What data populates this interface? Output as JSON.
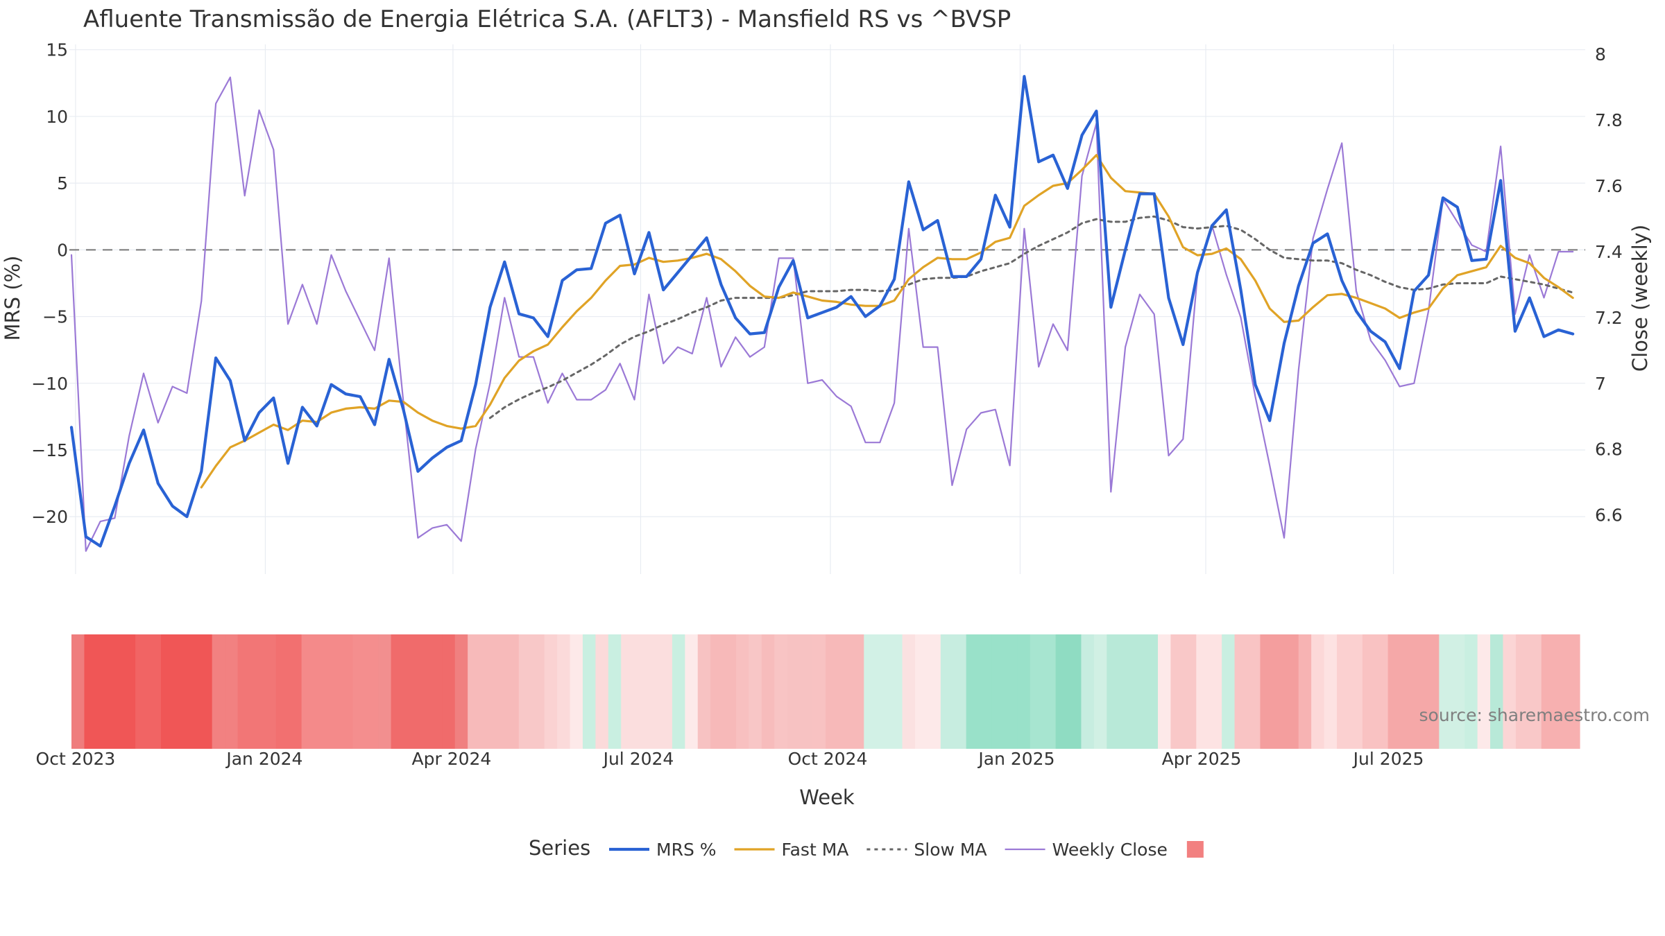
{
  "chart_data": {
    "type": "line",
    "title": "Afluente Transmissão de Energia Elétrica S.A. (AFLT3) - Mansfield RS vs ^BVSP",
    "xlabel": "Week",
    "ylabel": "MRS (%)",
    "y2label": "Close (weekly)",
    "ylim": [
      -24.3,
      15.4
    ],
    "y2lim": [
      6.42,
      8.03
    ],
    "xlim": [
      "2023-09-28",
      "2025-10-02"
    ],
    "y_ticks": [
      "15",
      "10",
      "5",
      "0",
      "−5",
      "−10",
      "−15",
      "−20"
    ],
    "y_tick_values": [
      15,
      10,
      5,
      0,
      -5,
      -10,
      -15,
      -20
    ],
    "y2_ticks": [
      "8",
      "7.8",
      "7.6",
      "7.4",
      "7.2",
      "7",
      "6.8",
      "6.6"
    ],
    "y2_tick_values": [
      8,
      7.8,
      7.6,
      7.4,
      7.2,
      7,
      6.8,
      6.6
    ],
    "x_ticks": [
      {
        "date": "2023-10-01",
        "label": "Oct 2023"
      },
      {
        "date": "2024-01-01",
        "label": "Jan 2024"
      },
      {
        "date": "2024-04-01",
        "label": "Apr 2024"
      },
      {
        "date": "2024-07-01",
        "label": "Jul 2024"
      },
      {
        "date": "2024-10-01",
        "label": "Oct 2024"
      },
      {
        "date": "2025-01-01",
        "label": "Jan 2025"
      },
      {
        "date": "2025-04-01",
        "label": "Apr 2025"
      },
      {
        "date": "2025-07-01",
        "label": "Jul 2025"
      }
    ],
    "x": [
      "2023-09-29",
      "2023-10-06",
      "2023-10-13",
      "2023-10-20",
      "2023-10-27",
      "2023-11-03",
      "2023-11-10",
      "2023-11-17",
      "2023-11-24",
      "2023-12-01",
      "2023-12-08",
      "2023-12-15",
      "2023-12-22",
      "2023-12-29",
      "2024-01-05",
      "2024-01-12",
      "2024-01-19",
      "2024-01-26",
      "2024-02-02",
      "2024-02-09",
      "2024-02-16",
      "2024-02-23",
      "2024-03-01",
      "2024-03-08",
      "2024-03-15",
      "2024-03-22",
      "2024-03-29",
      "2024-04-05",
      "2024-04-12",
      "2024-04-19",
      "2024-04-26",
      "2024-05-03",
      "2024-05-10",
      "2024-05-17",
      "2024-05-24",
      "2024-05-31",
      "2024-06-07",
      "2024-06-14",
      "2024-06-21",
      "2024-06-28",
      "2024-07-05",
      "2024-07-12",
      "2024-07-19",
      "2024-07-26",
      "2024-08-02",
      "2024-08-09",
      "2024-08-16",
      "2024-08-23",
      "2024-08-30",
      "2024-09-06",
      "2024-09-13",
      "2024-09-20",
      "2024-09-27",
      "2024-10-04",
      "2024-10-11",
      "2024-10-18",
      "2024-10-25",
      "2024-11-01",
      "2024-11-08",
      "2024-11-15",
      "2024-11-22",
      "2024-11-29",
      "2024-12-06",
      "2024-12-13",
      "2024-12-20",
      "2024-12-27",
      "2025-01-03",
      "2025-01-10",
      "2025-01-17",
      "2025-01-24",
      "2025-01-31",
      "2025-02-07",
      "2025-02-14",
      "2025-02-21",
      "2025-02-28",
      "2025-03-07",
      "2025-03-14",
      "2025-03-21",
      "2025-03-28",
      "2025-04-04",
      "2025-04-11",
      "2025-04-18",
      "2025-04-25",
      "2025-05-02",
      "2025-05-09",
      "2025-05-16",
      "2025-05-23",
      "2025-05-30",
      "2025-06-06",
      "2025-06-13",
      "2025-06-20",
      "2025-06-27",
      "2025-07-04",
      "2025-07-11",
      "2025-07-18",
      "2025-07-25",
      "2025-08-01",
      "2025-08-08",
      "2025-08-15",
      "2025-08-22",
      "2025-08-29",
      "2025-09-05",
      "2025-09-12",
      "2025-09-19",
      "2025-09-26"
    ],
    "series": [
      {
        "name": "MRS %",
        "axis": "left",
        "color": "#2962d4",
        "style": "solid-thick",
        "values": [
          -13.3,
          -21.5,
          -22.2,
          -19.2,
          -16.0,
          -13.5,
          -17.5,
          -19.2,
          -20.0,
          -16.6,
          -8.1,
          -9.8,
          -14.3,
          -12.2,
          -11.1,
          -16.0,
          -11.8,
          -13.2,
          -10.1,
          -10.8,
          -11.0,
          -13.1,
          -8.2,
          -12.0,
          -16.6,
          -15.6,
          -14.8,
          -14.3,
          -10.1,
          -4.3,
          -0.9,
          -4.8,
          -5.1,
          -6.5,
          -2.3,
          -1.5,
          -1.4,
          2.0,
          2.6,
          -1.8,
          1.3,
          -3.0,
          -1.7,
          -0.4,
          0.9,
          -2.6,
          -5.1,
          -6.3,
          -6.2,
          -2.8,
          -0.8,
          -5.1,
          -4.7,
          -4.3,
          -3.5,
          -5.0,
          -4.2,
          -2.2,
          5.1,
          1.5,
          2.2,
          -2.0,
          -2.0,
          -0.7,
          4.1,
          1.7,
          13.0,
          6.6,
          7.1,
          4.6,
          8.6,
          10.4,
          -4.3,
          0.0,
          4.2,
          4.2,
          -3.6,
          -7.1,
          -1.7,
          1.8,
          3.0,
          -3.0,
          -10.1,
          -12.8,
          -7.0,
          -2.7,
          0.5,
          1.2,
          -2.3,
          -4.6,
          -6.1,
          -6.9,
          -8.9,
          -3.1,
          -1.9,
          3.9,
          3.2,
          -0.8,
          -0.7,
          5.2,
          -6.1,
          -3.6,
          -6.5,
          -6.0,
          -6.3
        ]
      },
      {
        "name": "Fast MA",
        "axis": "left",
        "color": "#e0a326",
        "style": "solid",
        "values": [
          null,
          null,
          null,
          null,
          null,
          null,
          null,
          null,
          null,
          -17.8,
          -16.2,
          -14.8,
          -14.3,
          -13.7,
          -13.1,
          -13.5,
          -12.8,
          -12.9,
          -12.2,
          -11.9,
          -11.8,
          -11.9,
          -11.3,
          -11.4,
          -12.2,
          -12.8,
          -13.2,
          -13.4,
          -13.2,
          -11.6,
          -9.6,
          -8.3,
          -7.6,
          -7.1,
          -5.8,
          -4.6,
          -3.6,
          -2.3,
          -1.2,
          -1.1,
          -0.6,
          -0.9,
          -0.8,
          -0.6,
          -0.3,
          -0.7,
          -1.6,
          -2.7,
          -3.5,
          -3.6,
          -3.2,
          -3.5,
          -3.8,
          -3.9,
          -4.1,
          -4.2,
          -4.2,
          -3.8,
          -2.2,
          -1.3,
          -0.6,
          -0.7,
          -0.7,
          -0.2,
          0.6,
          0.9,
          3.3,
          4.1,
          4.8,
          5.0,
          6.0,
          7.1,
          5.4,
          4.4,
          4.3,
          4.2,
          2.5,
          0.2,
          -0.4,
          -0.3,
          0.1,
          -0.7,
          -2.3,
          -4.4,
          -5.4,
          -5.3,
          -4.3,
          -3.4,
          -3.3,
          -3.6,
          -4.0,
          -4.4,
          -5.1,
          -4.7,
          -4.4,
          -2.9,
          -1.9,
          -1.6,
          -1.3,
          0.3,
          -0.6,
          -1.0,
          -2.1,
          -2.8,
          -3.6
        ]
      },
      {
        "name": "Slow MA",
        "axis": "left",
        "color": "#666666",
        "style": "dotted",
        "values": [
          null,
          null,
          null,
          null,
          null,
          null,
          null,
          null,
          null,
          null,
          null,
          null,
          null,
          null,
          null,
          null,
          null,
          null,
          null,
          null,
          null,
          null,
          null,
          null,
          null,
          null,
          null,
          null,
          null,
          -12.6,
          -11.8,
          -11.2,
          -10.7,
          -10.3,
          -9.8,
          -9.2,
          -8.6,
          -7.9,
          -7.1,
          -6.5,
          -6.1,
          -5.6,
          -5.2,
          -4.7,
          -4.3,
          -3.8,
          -3.6,
          -3.6,
          -3.6,
          -3.6,
          -3.4,
          -3.1,
          -3.1,
          -3.1,
          -3.0,
          -3.0,
          -3.1,
          -3.0,
          -2.6,
          -2.2,
          -2.1,
          -2.1,
          -2.0,
          -1.6,
          -1.3,
          -1.0,
          -0.3,
          0.3,
          0.8,
          1.3,
          2.0,
          2.3,
          2.1,
          2.1,
          2.4,
          2.5,
          2.2,
          1.7,
          1.6,
          1.7,
          1.8,
          1.5,
          0.8,
          0.0,
          -0.6,
          -0.7,
          -0.8,
          -0.8,
          -1.0,
          -1.5,
          -1.9,
          -2.4,
          -2.8,
          -3.0,
          -2.9,
          -2.6,
          -2.5,
          -2.5,
          -2.5,
          -2.0,
          -2.2,
          -2.4,
          -2.6,
          -2.9,
          -3.2
        ]
      },
      {
        "name": "Weekly Close",
        "axis": "right",
        "color": "#9b79d6",
        "style": "solid-thin",
        "values": [
          7.39,
          6.49,
          6.58,
          6.59,
          6.84,
          7.03,
          6.88,
          6.99,
          6.97,
          7.25,
          7.85,
          7.93,
          7.57,
          7.83,
          7.71,
          7.18,
          7.3,
          7.18,
          7.39,
          7.28,
          7.19,
          7.1,
          7.38,
          6.94,
          6.53,
          6.56,
          6.57,
          6.52,
          6.8,
          7.0,
          7.26,
          7.08,
          7.08,
          6.94,
          7.03,
          6.95,
          6.95,
          6.98,
          7.06,
          6.95,
          7.27,
          7.06,
          7.11,
          7.09,
          7.26,
          7.05,
          7.14,
          7.08,
          7.11,
          7.38,
          7.38,
          7.0,
          7.01,
          6.96,
          6.93,
          6.82,
          6.82,
          6.94,
          7.47,
          7.11,
          7.11,
          6.69,
          6.86,
          6.91,
          6.92,
          6.75,
          7.47,
          7.05,
          7.18,
          7.1,
          7.63,
          7.79,
          6.67,
          7.11,
          7.27,
          7.21,
          6.78,
          6.83,
          7.33,
          7.48,
          7.33,
          7.2,
          6.96,
          6.75,
          6.53,
          7.04,
          7.44,
          7.59,
          7.73,
          7.28,
          7.13,
          7.07,
          6.99,
          7.0,
          7.22,
          7.56,
          7.49,
          7.42,
          7.4,
          7.72,
          7.21,
          7.39,
          7.26,
          7.4,
          7.4
        ]
      }
    ],
    "heatmap_strip": {
      "description_colors": "green=positive MRS, red=negative MRS",
      "colors": [
        "#ef7d7d",
        "#f05656",
        "#f05656",
        "#f05656",
        "#f05656",
        "#f16464",
        "#f16464",
        "#f05656",
        "#f05656",
        "#f05656",
        "#f05656",
        "#f28181",
        "#f28181",
        "#f27676",
        "#f27676",
        "#f27676",
        "#f27070",
        "#f27070",
        "#f48a8a",
        "#f48a8a",
        "#f48a8a",
        "#f48a8a",
        "#f48e8e",
        "#f48e8e",
        "#f28f8f",
        "#f06b6b",
        "#f06b6b",
        "#f06b6b",
        "#f06b6b",
        "#f06b6b",
        "#f08080",
        "#f7baba",
        "#f7baba",
        "#f7baba",
        "#f7baba",
        "#f8c8c8",
        "#f8c8c8",
        "#fad2d2",
        "#fbdada",
        "#fde9e9",
        "#c9efe1",
        "#fbdada",
        "#c9efe1",
        "#fbdede",
        "#fbdede",
        "#fbdede",
        "#fbdede",
        "#c9efe1",
        "#fdeaea",
        "#f7c2c2",
        "#f7b9b9",
        "#f7b9b9",
        "#f8c0c0",
        "#f8c6c6",
        "#f7bcbc",
        "#f8c4c4",
        "#f7c2c2",
        "#f7c2c2",
        "#f8c2c2",
        "#f7b9b9",
        "#f7b9b9",
        "#f7b9b9",
        "#d2f1e6",
        "#d2f1e6",
        "#d2f1e6",
        "#fbe1e1",
        "#fde9e9",
        "#fde9e9",
        "#c7ede0",
        "#c7ede0",
        "#99e1c9",
        "#99e1c9",
        "#99e1c9",
        "#99e1c9",
        "#99e1c9",
        "#a7e5d0",
        "#a7e5d0",
        "#8fdcc2",
        "#8fdcc2",
        "#c7ede0",
        "#d1f0e4",
        "#b8e9d8",
        "#b8e9d8",
        "#b8e9d8",
        "#b8e9d8",
        "#fde9e9",
        "#f9c8c8",
        "#f9c8c8",
        "#fde3e3",
        "#fde3e3",
        "#c9efe1",
        "#f9c4c4",
        "#f9c4c4",
        "#f49e9e",
        "#f49e9e",
        "#f49e9e",
        "#f7b3b3",
        "#fcd8d8",
        "#fde2e2",
        "#fbd0d0",
        "#fbd0d0",
        "#f9c2c2",
        "#f9c2c2",
        "#f5a8a8",
        "#f5a8a8",
        "#f5a8a8",
        "#f5a8a8",
        "#d1f0e4",
        "#d1f0e4",
        "#c9efe1",
        "#fde9e9",
        "#b8e9d8",
        "#fbd5d5",
        "#f9c8c8",
        "#f9c8c8",
        "#f7b0b0",
        "#f7b0b0",
        "#f7b0b0"
      ]
    },
    "legend": {
      "title": "Series",
      "placement": "bottom-center",
      "items": [
        {
          "label": "MRS %",
          "color": "#2962d4",
          "style": "solid-thick"
        },
        {
          "label": "Fast MA",
          "color": "#e0a326",
          "style": "solid"
        },
        {
          "label": "Slow MA",
          "color": "#666666",
          "style": "dotted"
        },
        {
          "label": "Weekly Close",
          "color": "#9b79d6",
          "style": "solid-thin"
        },
        {
          "label": "",
          "color": "#f28080",
          "style": "swatch"
        }
      ]
    },
    "zero_line": {
      "value": 0,
      "style": "dashed",
      "color": "#777777"
    },
    "grid": true
  },
  "source_text": "source: sharemaestro.com"
}
